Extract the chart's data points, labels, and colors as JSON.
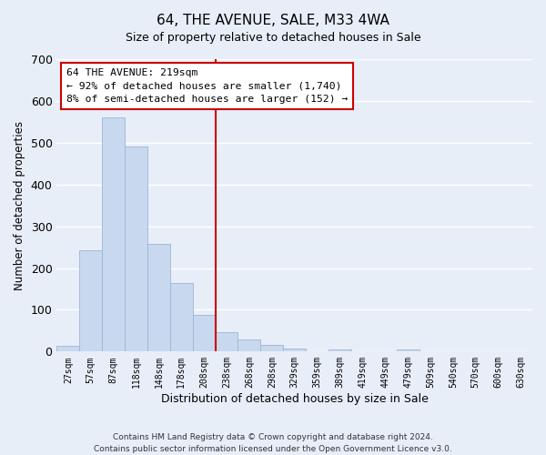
{
  "title": "64, THE AVENUE, SALE, M33 4WA",
  "subtitle": "Size of property relative to detached houses in Sale",
  "xlabel": "Distribution of detached houses by size in Sale",
  "ylabel": "Number of detached properties",
  "bin_labels": [
    "27sqm",
    "57sqm",
    "87sqm",
    "118sqm",
    "148sqm",
    "178sqm",
    "208sqm",
    "238sqm",
    "268sqm",
    "298sqm",
    "329sqm",
    "359sqm",
    "389sqm",
    "419sqm",
    "449sqm",
    "479sqm",
    "509sqm",
    "540sqm",
    "570sqm",
    "600sqm",
    "630sqm"
  ],
  "bar_heights": [
    13,
    242,
    560,
    490,
    257,
    165,
    88,
    46,
    28,
    15,
    8,
    0,
    4,
    0,
    0,
    5,
    0,
    0,
    0,
    0,
    0
  ],
  "bar_color": "#c8d8ee",
  "bar_edge_color": "#9db5d8",
  "vline_color": "#cc0000",
  "ylim": [
    0,
    700
  ],
  "yticks": [
    0,
    100,
    200,
    300,
    400,
    500,
    600,
    700
  ],
  "annotation_title": "64 THE AVENUE: 219sqm",
  "annotation_line1": "← 92% of detached houses are smaller (1,740)",
  "annotation_line2": "8% of semi-detached houses are larger (152) →",
  "annotation_box_color": "#ffffff",
  "annotation_box_edge": "#cc0000",
  "footer_line1": "Contains HM Land Registry data © Crown copyright and database right 2024.",
  "footer_line2": "Contains public sector information licensed under the Open Government Licence v3.0.",
  "bg_color": "#e8eef8",
  "grid_color": "#ffffff",
  "title_fontsize": 11,
  "subtitle_fontsize": 9
}
